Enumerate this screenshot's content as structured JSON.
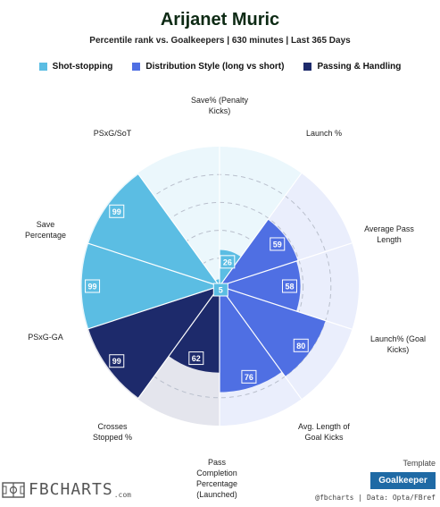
{
  "header": {
    "title": "Arijanet Muric",
    "subtitle": "Percentile rank vs. Goalkeepers | 630 minutes | Last 365 Days"
  },
  "legend": [
    {
      "label": "Shot-stopping",
      "color": "#5bbde3"
    },
    {
      "label": "Distribution Style (long vs short)",
      "color": "#4f6fe3"
    },
    {
      "label": "Passing & Handling",
      "color": "#1d2a6b"
    }
  ],
  "chart_data": {
    "type": "radar",
    "title": "Arijanet Muric",
    "subtitle": "Percentile rank vs. Goalkeepers | 630 minutes | Last 365 Days",
    "rlim": [
      0,
      100
    ],
    "grid": true,
    "categories": [
      "Save% (Penalty Kicks)",
      "Launch %",
      "Average Pass Length",
      "Launch% (Goal Kicks)",
      "Avg. Length of Goal Kicks",
      "Pass Completion Percentage (Launched)",
      "Crosses Stopped %",
      "PSxG-GA",
      "Save Percentage",
      "PSxG/SoT"
    ],
    "series": [
      {
        "name": "Shot-stopping",
        "color": "#5bbde3",
        "values": [
          26,
          null,
          null,
          null,
          null,
          null,
          null,
          99,
          99,
          5
        ]
      },
      {
        "name": "Distribution Style (long vs short)",
        "color": "#4f6fe3",
        "values": [
          null,
          59,
          58,
          80,
          76,
          null,
          null,
          null,
          null,
          null
        ]
      },
      {
        "name": "Passing & Handling",
        "color": "#1d2a6b",
        "values": [
          null,
          null,
          null,
          null,
          null,
          62,
          99,
          null,
          null,
          null
        ]
      }
    ]
  },
  "footer": {
    "template_label": "Template",
    "template_value": "Goalkeeper",
    "credit": "@fbcharts | Data: Opta/FBref",
    "logo_text": "FBCHARTS",
    "logo_suffix": ".com"
  }
}
